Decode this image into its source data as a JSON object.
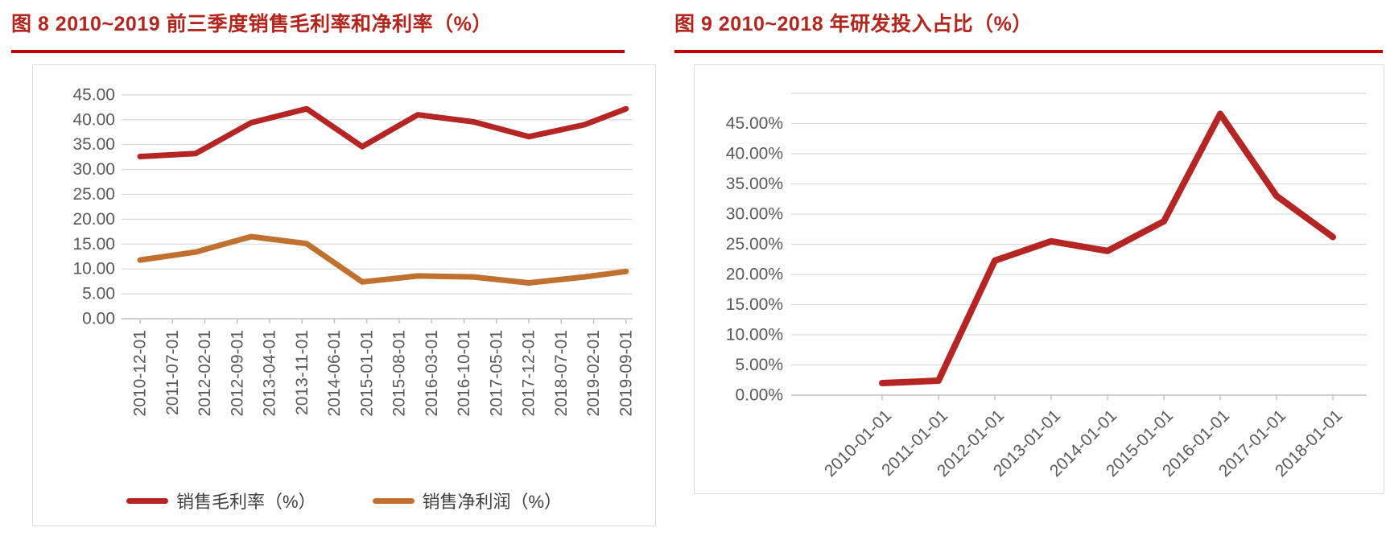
{
  "colors": {
    "title_red": "#B2261E",
    "rule_red": "#C00000",
    "gross_margin_line": "#B42523",
    "net_margin_line": "#C0712F",
    "rd_line": "#B42523",
    "axis_text": "#595959",
    "gridline": "#D9D9D9",
    "axis_line": "#BFBFBF"
  },
  "chart_data": [
    {
      "id": "fig8",
      "type": "line",
      "title": "图 8  2010~2019 前三季度销售毛利率和净利率（%）",
      "x_axis_type": "date",
      "x_tick_labels": [
        "2010-12-01",
        "2011-07-01",
        "2012-02-01",
        "2012-09-01",
        "2013-04-01",
        "2013-11-01",
        "2014-06-01",
        "2015-01-01",
        "2015-08-01",
        "2016-03-01",
        "2016-10-01",
        "2017-05-01",
        "2017-12-01",
        "2018-07-01",
        "2019-02-01",
        "2019-09-01"
      ],
      "x_tick_months": [
        0,
        7,
        14,
        21,
        28,
        35,
        42,
        49,
        56,
        63,
        70,
        77,
        84,
        91,
        98,
        105
      ],
      "series": [
        {
          "name": "销售毛利率（%）",
          "color": "#B42523",
          "point_dates": [
            "2010-12",
            "2011-12",
            "2012-12",
            "2013-12",
            "2014-12",
            "2015-12",
            "2016-12",
            "2017-12",
            "2018-12",
            "2019-09"
          ],
          "x_months": [
            0,
            12,
            24,
            36,
            48,
            60,
            72,
            84,
            96,
            105
          ],
          "values": [
            32.6,
            33.2,
            39.4,
            42.2,
            34.6,
            41.0,
            39.6,
            36.6,
            39.0,
            42.2
          ]
        },
        {
          "name": "销售净利润（%）",
          "color": "#C0712F",
          "point_dates": [
            "2010-12",
            "2011-12",
            "2012-12",
            "2013-12",
            "2014-12",
            "2015-12",
            "2016-12",
            "2017-12",
            "2018-12",
            "2019-09"
          ],
          "x_months": [
            0,
            12,
            24,
            36,
            48,
            60,
            72,
            84,
            96,
            105
          ],
          "values": [
            11.8,
            13.4,
            16.5,
            15.1,
            7.4,
            8.6,
            8.4,
            7.2,
            8.4,
            9.5
          ]
        }
      ],
      "ylim": [
        0,
        45
      ],
      "ytick_step": 5,
      "ytick_labels": [
        "0.00",
        "5.00",
        "10.00",
        "15.00",
        "20.00",
        "25.00",
        "30.00",
        "35.00",
        "40.00",
        "45.00"
      ],
      "grid": true,
      "legend_position": "bottom"
    },
    {
      "id": "fig9",
      "type": "line",
      "title": "图 9  2010~2018 年研发投入占比（%）",
      "x_axis_type": "category",
      "categories": [
        "2010-01-01",
        "2011-01-01",
        "2012-01-01",
        "2013-01-01",
        "2014-01-01",
        "2015-01-01",
        "2016-01-01",
        "2017-01-01",
        "2018-01-01"
      ],
      "series": [
        {
          "name": "研发投入占比",
          "color": "#B42523",
          "values": [
            2.0,
            2.4,
            22.3,
            25.5,
            23.9,
            28.8,
            46.6,
            33.0,
            26.2
          ]
        }
      ],
      "ylim": [
        0,
        50
      ],
      "ytick_step": 5,
      "ytick_labels": [
        "0.00%",
        "5.00%",
        "10.00%",
        "15.00%",
        "20.00%",
        "25.00%",
        "30.00%",
        "35.00%",
        "40.00%",
        "45.00%"
      ],
      "label_max": 45,
      "grid": true,
      "legend_position": "none"
    }
  ]
}
